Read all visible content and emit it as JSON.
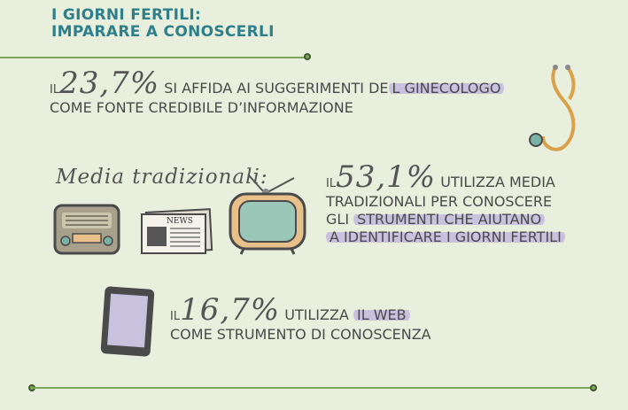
{
  "header": {
    "line1": "I GIORNI FERTILI:",
    "line2": "IMPARARE A CONOSCERLI"
  },
  "stat1": {
    "prefix": "IL",
    "value": "23,7%",
    "line1": "SI AFFIDA AI SUGGERIMENTI DE",
    "line1_hl": "L GINECOLOGO",
    "line2": "COME FONTE CREDIBILE D’INFORMAZIONE"
  },
  "traditional": {
    "label": "Media tradizionali:",
    "newspaper": "NEWS"
  },
  "stat2": {
    "prefix": "IL",
    "value": "53,1%",
    "line1": "UTILIZZA MEDIA",
    "line2": "TRADIZIONALI PER CONOSCERE",
    "line3a": "GLI ",
    "line3_hl": "STRUMENTI CHE AIUTANO",
    "line4_hl": "A IDENTIFICARE I GIORNI FERTILI"
  },
  "stat3": {
    "prefix": "IL",
    "value": "16,7%",
    "line1a": "UTILIZZA ",
    "line1_hl": "IL WEB",
    "line2": "COME STRUMENTO DI CONOSCENZA"
  },
  "colors": {
    "background": "#e8f0dd",
    "title": "#2f7f8b",
    "rule": "#7da65a",
    "highlight": "#c9c2df"
  }
}
